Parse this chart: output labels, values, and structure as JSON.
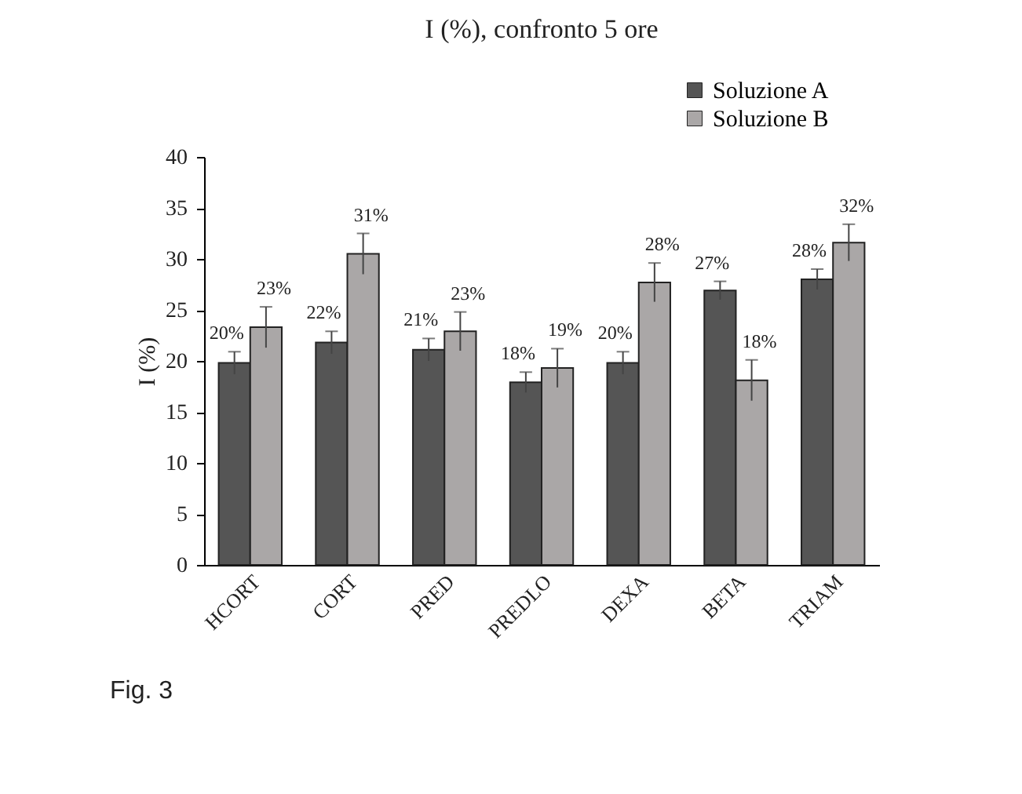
{
  "chart_data": {
    "type": "bar",
    "title": "I (%), confronto 5 ore",
    "ylabel": "I (%)",
    "categories": [
      "HCORT",
      "CORT",
      "PRED",
      "PREDLO",
      "DEXA",
      "BETA",
      "TRIAM"
    ],
    "series": [
      {
        "name": "Soluzione A",
        "color": "#555555",
        "values": [
          19.8,
          21.8,
          21.1,
          17.9,
          19.8,
          26.9,
          28.0
        ],
        "errors": [
          1.1,
          1.1,
          1.1,
          1.0,
          1.1,
          0.9,
          1.0
        ],
        "value_labels": [
          "20%",
          "22%",
          "21%",
          "18%",
          "20%",
          "27%",
          "28%"
        ]
      },
      {
        "name": "Soluzione B",
        "color": "#aaa7a7",
        "values": [
          23.3,
          30.5,
          22.9,
          19.3,
          27.7,
          18.1,
          31.6
        ],
        "errors": [
          2.0,
          2.0,
          1.9,
          1.9,
          1.9,
          2.0,
          1.8
        ],
        "value_labels": [
          "23%",
          "31%",
          "23%",
          "19%",
          "28%",
          "18%",
          "32%"
        ]
      }
    ],
    "ylim": [
      0,
      40
    ],
    "yticks": [
      0,
      5,
      10,
      15,
      20,
      25,
      30,
      35,
      40
    ],
    "grid": false,
    "legend": "top right",
    "annotations": [
      "Fig. 3"
    ]
  }
}
